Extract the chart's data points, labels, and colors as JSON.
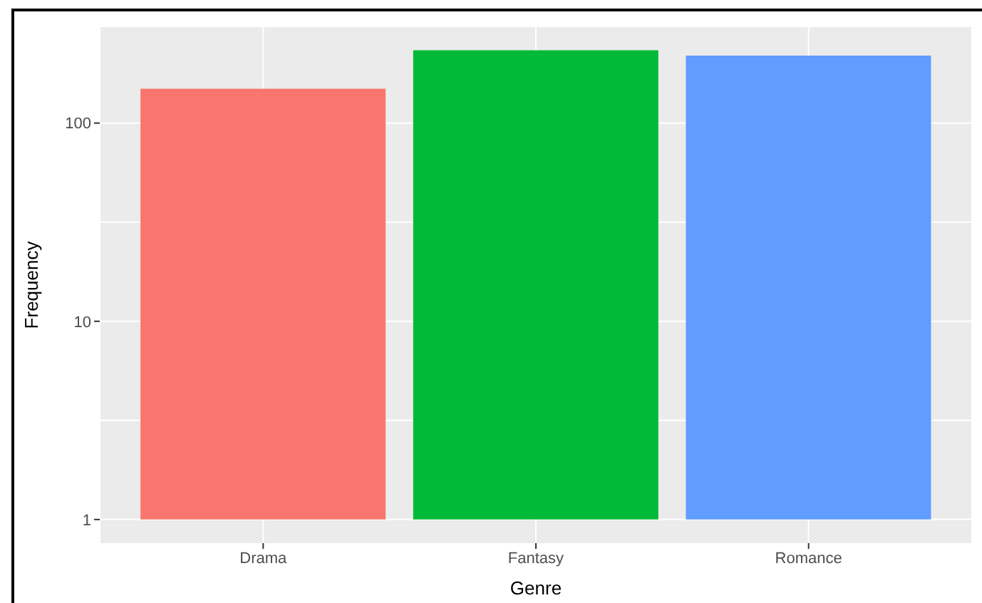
{
  "chart_data": {
    "type": "bar",
    "xlabel": "Genre",
    "ylabel": "Frequency",
    "categories": [
      "Drama",
      "Fantasy",
      "Romance"
    ],
    "base": [
      1,
      1,
      1
    ],
    "values": [
      148,
      232,
      218
    ],
    "colors": [
      "#f8766d",
      "#00ba38",
      "#619cff"
    ],
    "log": "y",
    "ylim": [
      0.76,
      305
    ],
    "yticks": [
      1,
      10,
      100
    ],
    "grid": true
  }
}
